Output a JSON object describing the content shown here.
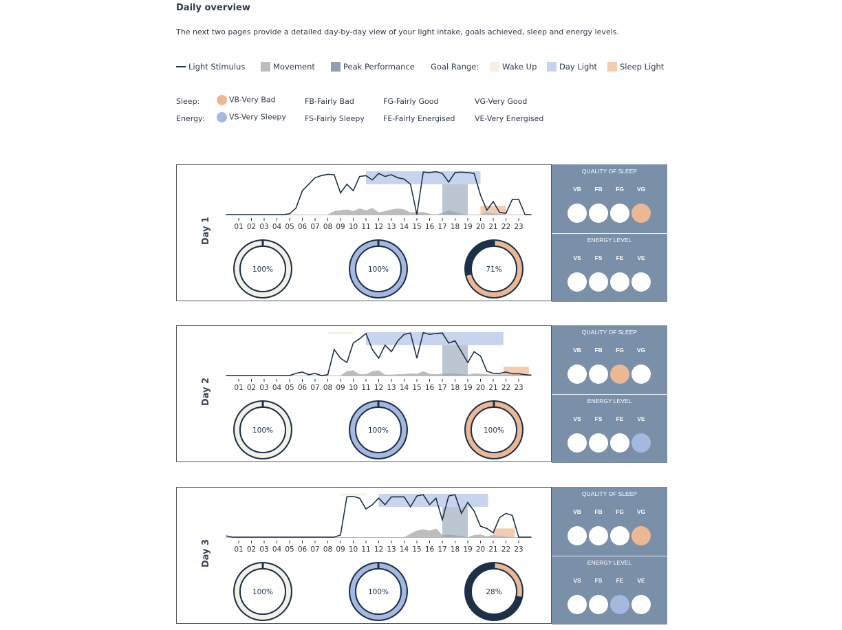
{
  "title": "Daily overview",
  "intro": "The next two pages provide a detailed day-by-day view of your light intake, goals achieved, sleep and energy levels.",
  "legend": {
    "light": "Light Stimulus",
    "movement": "Movement",
    "peak": "Peak Performance",
    "goal_range": "Goal Range:",
    "wake": "Wake Up",
    "day": "Day Light",
    "sleep": "Sleep Light"
  },
  "scales": {
    "sleep_label": "Sleep:",
    "energy_label": "Energy:",
    "sleep": [
      "VB-Very Bad",
      "FB-Fairly Bad",
      "FG-Fairly Good",
      "VG-Very Good"
    ],
    "energy": [
      "VS-Very Sleepy",
      "FS-Fairly Sleepy",
      "FE-Fairly Energised",
      "VE-Very Energised"
    ]
  },
  "colors": {
    "light": "#1c3048",
    "movement": "#bdbdbd",
    "peak": "#8fa0b5",
    "wake": "#f4efe2",
    "day": "#c8d4ee",
    "sleep": "#f2cbb0",
    "sleep_dot": "#ecb894",
    "energy_dot": "#a5b8e0",
    "panel": "#7a8fa8",
    "ring_rest": "#1c3048",
    "ring1": "#f3f1e6",
    "ring2": "#a5b8e0",
    "ring3": "#ecb894"
  },
  "panel": {
    "sleep_title": "QUALITY OF SLEEP",
    "energy_title": "ENERGY LEVEL",
    "sleep_codes": [
      "VB",
      "FB",
      "FG",
      "VG"
    ],
    "energy_codes": [
      "VS",
      "FS",
      "FE",
      "VE"
    ]
  },
  "chart_data": [
    {
      "type": "line",
      "title": "Day 1",
      "xlim": [
        0,
        24
      ],
      "ylim": [
        0,
        100
      ],
      "ticks": [
        "01",
        "02",
        "03",
        "04",
        "05",
        "06",
        "07",
        "08",
        "09",
        "10",
        "11",
        "12",
        "13",
        "14",
        "15",
        "16",
        "17",
        "18",
        "19",
        "20",
        "21",
        "22",
        "23"
      ],
      "light": [
        0,
        0,
        0,
        0,
        0,
        0,
        0,
        0,
        0,
        0,
        2,
        15,
        55,
        70,
        85,
        90,
        93,
        92,
        50,
        70,
        55,
        88,
        90,
        80,
        95,
        88,
        92,
        85,
        82,
        70,
        0,
        98,
        97,
        99,
        95,
        75,
        97,
        98,
        97,
        95,
        45,
        10,
        30,
        5,
        3,
        35,
        35,
        0,
        0
      ],
      "movement": [
        0,
        0,
        0,
        0,
        0,
        0,
        0,
        0,
        0,
        0,
        0,
        0,
        0,
        0,
        0,
        0,
        0,
        8,
        10,
        12,
        8,
        14,
        10,
        15,
        5,
        8,
        12,
        14,
        12,
        5,
        5,
        6,
        2,
        0,
        4,
        10,
        6,
        2,
        0,
        0,
        0,
        6,
        3,
        2,
        0,
        0,
        0,
        0,
        0
      ],
      "wake": null,
      "day": [
        11,
        20,
        70,
        100
      ],
      "peak": [
        17,
        19,
        0,
        70
      ],
      "sleep": [
        20,
        22,
        0,
        20
      ],
      "sleep_quality": "VG",
      "energy_level": null,
      "rings": [
        100,
        100,
        71
      ]
    },
    {
      "type": "line",
      "title": "Day 2",
      "xlim": [
        0,
        24
      ],
      "ylim": [
        0,
        100
      ],
      "ticks": [
        "01",
        "02",
        "03",
        "04",
        "05",
        "06",
        "07",
        "08",
        "09",
        "10",
        "11",
        "12",
        "13",
        "14",
        "15",
        "16",
        "17",
        "18",
        "19",
        "20",
        "21",
        "22",
        "23"
      ],
      "light": [
        0,
        0,
        0,
        0,
        0,
        0,
        0,
        0,
        0,
        0,
        0,
        5,
        8,
        2,
        5,
        0,
        2,
        60,
        40,
        30,
        75,
        85,
        97,
        60,
        40,
        70,
        55,
        80,
        95,
        98,
        40,
        99,
        95,
        97,
        98,
        75,
        80,
        55,
        30,
        55,
        45,
        10,
        5,
        5,
        8,
        4,
        4,
        2,
        1
      ],
      "movement": [
        0,
        0,
        0,
        0,
        0,
        0,
        0,
        0,
        0,
        0,
        0,
        0,
        0,
        0,
        0,
        0,
        0,
        0,
        0,
        10,
        12,
        3,
        3,
        10,
        12,
        2,
        2,
        3,
        3,
        5,
        4,
        10,
        4,
        3,
        4,
        5,
        4,
        3,
        2,
        5,
        4,
        3,
        2,
        3,
        2,
        2,
        1,
        1,
        0
      ],
      "wake": [
        8,
        10,
        96,
        100
      ],
      "day": [
        11,
        21.8,
        70,
        100
      ],
      "peak": [
        17,
        19,
        0,
        70
      ],
      "sleep": [
        21.8,
        23.8,
        0,
        20
      ],
      "sleep_quality": "FG",
      "energy_level": "VE",
      "rings": [
        100,
        100,
        100
      ]
    },
    {
      "type": "line",
      "title": "Day 3",
      "xlim": [
        0,
        24
      ],
      "ylim": [
        0,
        100
      ],
      "ticks": [
        "01",
        "02",
        "03",
        "04",
        "05",
        "06",
        "07",
        "08",
        "09",
        "10",
        "11",
        "12",
        "13",
        "14",
        "15",
        "16",
        "17",
        "18",
        "19",
        "20",
        "21",
        "22",
        "23"
      ],
      "light": [
        3,
        0,
        0,
        0,
        0,
        0,
        0,
        0,
        0,
        0,
        0,
        0,
        0,
        0,
        0,
        0,
        0,
        0,
        5,
        93,
        94,
        90,
        65,
        75,
        90,
        75,
        93,
        93,
        93,
        70,
        95,
        98,
        75,
        90,
        40,
        95,
        98,
        55,
        80,
        60,
        25,
        20,
        10,
        45,
        55,
        50,
        0,
        0,
        0
      ],
      "movement": [
        0,
        0,
        0,
        0,
        0,
        0,
        0,
        0,
        0,
        0,
        0,
        0,
        0,
        0,
        0,
        0,
        0,
        0,
        0,
        0,
        0,
        0,
        0,
        0,
        0,
        0,
        0,
        0,
        0,
        8,
        15,
        18,
        15,
        20,
        5,
        6,
        4,
        3,
        0,
        5,
        6,
        2,
        5,
        3,
        2,
        0,
        0,
        0,
        0
      ],
      "wake": [
        9,
        11,
        96,
        100
      ],
      "day": [
        12,
        20.6,
        70,
        100
      ],
      "peak": [
        17,
        19,
        0,
        70
      ],
      "sleep": [
        21,
        22.7,
        0,
        20
      ],
      "sleep_quality": "VG",
      "energy_level": "FE",
      "rings": [
        100,
        100,
        28
      ]
    }
  ]
}
